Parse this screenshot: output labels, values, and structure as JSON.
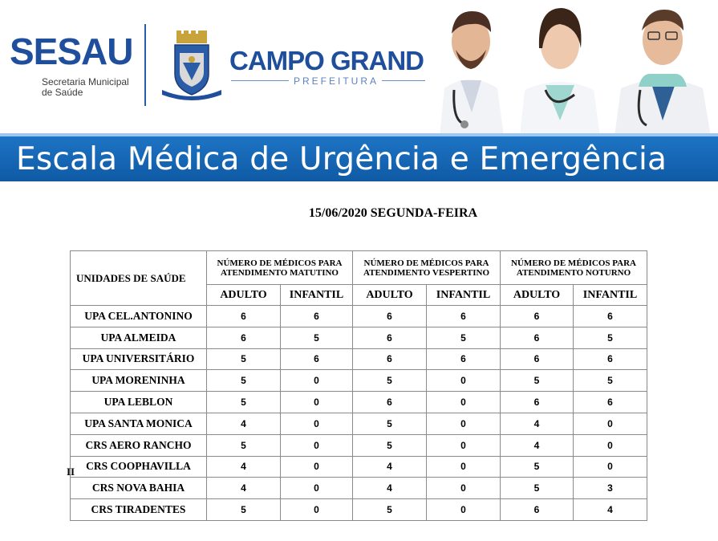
{
  "header": {
    "sesau_word": "SESAU",
    "sesau_sub_line1": "Secretaria Municipal",
    "sesau_sub_line2": "de Saúde",
    "crest_motto": "CAMPO GRANDE",
    "city_name": "CAMPO GRANDE",
    "city_sub": "PREFEITURA",
    "banner_title": "Escala Médica de Urgência e Emergência"
  },
  "colors": {
    "brand_blue": "#1f4f9c",
    "banner_blue": "#1466b5",
    "table_border": "#8a8a8a"
  },
  "date_title": "15/06/2020 SEGUNDA-FEIRA",
  "table": {
    "units_header": "UNIDADES DE SAÚDE",
    "groups": [
      "NÚMERO DE MÉDICOS PARA ATENDIMENTO MATUTINO",
      "NÚMERO DE MÉDICOS PARA ATENDIMENTO VESPERTINO",
      "NÚMERO DE MÉDICOS PARA ATENDIMENTO NOTURNO"
    ],
    "sub_headers": [
      "ADULTO",
      "INFANTIL",
      "ADULTO",
      "INFANTIL",
      "ADULTO",
      "INFANTIL"
    ],
    "rows": [
      {
        "unit": "UPA CEL.ANTONINO",
        "values": [
          "6",
          "6",
          "6",
          "6",
          "6",
          "6"
        ]
      },
      {
        "unit": "UPA ALMEIDA",
        "values": [
          "6",
          "5",
          "6",
          "5",
          "6",
          "5"
        ]
      },
      {
        "unit": "UPA UNIVERSITÁRIO",
        "values": [
          "5",
          "6",
          "6",
          "6",
          "6",
          "6"
        ]
      },
      {
        "unit": "UPA MORENINHA",
        "values": [
          "5",
          "0",
          "5",
          "0",
          "5",
          "5"
        ]
      },
      {
        "unit": "UPA LEBLON",
        "values": [
          "5",
          "0",
          "6",
          "0",
          "6",
          "6"
        ]
      },
      {
        "unit": "UPA SANTA MONICA",
        "values": [
          "4",
          "0",
          "5",
          "0",
          "4",
          "0"
        ]
      },
      {
        "unit": "CRS AERO RANCHO",
        "values": [
          "5",
          "0",
          "5",
          "0",
          "4",
          "0"
        ]
      },
      {
        "unit": "CRS COOPHAVILLA",
        "values": [
          "4",
          "0",
          "4",
          "0",
          "5",
          "0"
        ]
      },
      {
        "unit": "CRS NOVA BAHIA",
        "values": [
          "4",
          "0",
          "4",
          "0",
          "5",
          "3"
        ]
      },
      {
        "unit": "CRS TIRADENTES",
        "values": [
          "5",
          "0",
          "5",
          "0",
          "6",
          "4"
        ]
      }
    ],
    "stray_text": "II"
  }
}
